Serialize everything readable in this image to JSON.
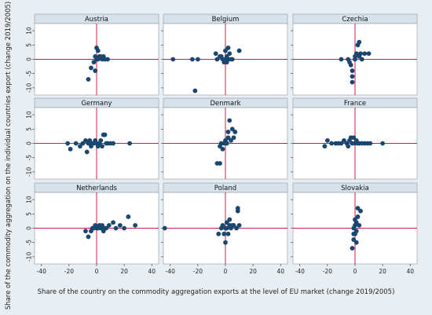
{
  "chart_data": {
    "type": "scatter",
    "xlabel": "Share of the country on the commodity aggregation exports at the level of EU market (change 2019/2005)",
    "ylabel": "Share of the commodity aggregation on the individual countries export (change 2019/2005)",
    "xlim": [
      -45,
      45
    ],
    "ylim": [
      -12.5,
      12.5
    ],
    "x_ticks": [
      -40,
      -20,
      0,
      20,
      40
    ],
    "y_ticks": [
      -10,
      -5,
      0,
      5,
      10
    ],
    "reference_lines": {
      "x": 0,
      "y": 0,
      "color": "#d6184a"
    },
    "point_color": "#1a476f",
    "panels": [
      {
        "title": "Austria",
        "points": [
          [
            0,
            4
          ],
          [
            1,
            3
          ],
          [
            -1,
            1
          ],
          [
            0,
            0
          ],
          [
            1,
            0
          ],
          [
            2,
            1
          ],
          [
            3,
            1
          ],
          [
            4,
            0
          ],
          [
            5,
            1
          ],
          [
            6,
            0
          ],
          [
            8,
            0
          ],
          [
            -2,
            -1
          ],
          [
            -4,
            -3
          ],
          [
            -1,
            -4
          ],
          [
            -6,
            -7
          ]
        ]
      },
      {
        "title": "Belgium",
        "points": [
          [
            -38,
            0
          ],
          [
            -24,
            0
          ],
          [
            -22,
            -11
          ],
          [
            -20,
            0
          ],
          [
            -6,
            0
          ],
          [
            -4,
            1
          ],
          [
            -3,
            1
          ],
          [
            -2,
            0
          ],
          [
            -1,
            -1
          ],
          [
            0,
            0
          ],
          [
            0,
            3
          ],
          [
            1,
            1
          ],
          [
            1,
            -1
          ],
          [
            2,
            0
          ],
          [
            2,
            4
          ],
          [
            3,
            2
          ],
          [
            4,
            0
          ],
          [
            5,
            0
          ],
          [
            10,
            3
          ],
          [
            -7,
            2
          ]
        ]
      },
      {
        "title": "Czechia",
        "points": [
          [
            -10,
            0
          ],
          [
            -5,
            0
          ],
          [
            -4,
            -1
          ],
          [
            -3,
            -2
          ],
          [
            -2,
            -4
          ],
          [
            -2,
            -6
          ],
          [
            -2,
            -8
          ],
          [
            0,
            0
          ],
          [
            0,
            1
          ],
          [
            1,
            2
          ],
          [
            2,
            5
          ],
          [
            3,
            6
          ],
          [
            3,
            1
          ],
          [
            4,
            2
          ],
          [
            5,
            0
          ],
          [
            7,
            2
          ],
          [
            10,
            2
          ]
        ]
      },
      {
        "title": "Germany",
        "points": [
          [
            -21,
            0
          ],
          [
            -19,
            -2
          ],
          [
            -15,
            0
          ],
          [
            -12,
            -1
          ],
          [
            -10,
            0
          ],
          [
            -8,
            1
          ],
          [
            -7,
            -3
          ],
          [
            -6,
            0
          ],
          [
            -5,
            1
          ],
          [
            -4,
            -1
          ],
          [
            -3,
            0
          ],
          [
            -2,
            0
          ],
          [
            -1,
            1
          ],
          [
            0,
            0
          ],
          [
            1,
            -1
          ],
          [
            2,
            0
          ],
          [
            3,
            1
          ],
          [
            4,
            -1
          ],
          [
            5,
            3
          ],
          [
            6,
            3
          ],
          [
            7,
            0
          ],
          [
            8,
            0
          ],
          [
            10,
            0
          ],
          [
            12,
            0
          ],
          [
            24,
            0
          ]
        ]
      },
      {
        "title": "Denmark",
        "points": [
          [
            -6,
            -7
          ],
          [
            -4,
            -7
          ],
          [
            -4,
            -1
          ],
          [
            -3,
            0
          ],
          [
            -2,
            -2
          ],
          [
            -1,
            0
          ],
          [
            0,
            1
          ],
          [
            1,
            0
          ],
          [
            2,
            2
          ],
          [
            2,
            4
          ],
          [
            3,
            8
          ],
          [
            4,
            1
          ],
          [
            5,
            5
          ],
          [
            6,
            2
          ],
          [
            7,
            4
          ]
        ]
      },
      {
        "title": "France",
        "points": [
          [
            -22,
            -1
          ],
          [
            -20,
            1
          ],
          [
            -17,
            0
          ],
          [
            -14,
            0
          ],
          [
            -12,
            0
          ],
          [
            -10,
            0
          ],
          [
            -8,
            1
          ],
          [
            -6,
            0
          ],
          [
            -5,
            -1
          ],
          [
            -4,
            1
          ],
          [
            -3,
            2
          ],
          [
            -2,
            0
          ],
          [
            -1,
            2
          ],
          [
            0,
            0
          ],
          [
            1,
            1
          ],
          [
            2,
            0
          ],
          [
            3,
            0
          ],
          [
            5,
            0
          ],
          [
            7,
            0
          ],
          [
            9,
            0
          ],
          [
            11,
            0
          ],
          [
            20,
            0
          ]
        ]
      },
      {
        "title": "Netherlands",
        "points": [
          [
            -8,
            -1
          ],
          [
            -6,
            -3
          ],
          [
            -4,
            -1
          ],
          [
            -3,
            0
          ],
          [
            -2,
            0
          ],
          [
            -1,
            1
          ],
          [
            0,
            0
          ],
          [
            1,
            0
          ],
          [
            2,
            1
          ],
          [
            3,
            0
          ],
          [
            4,
            1
          ],
          [
            5,
            -1
          ],
          [
            6,
            0
          ],
          [
            7,
            0
          ],
          [
            9,
            1
          ],
          [
            12,
            2
          ],
          [
            14,
            0
          ],
          [
            17,
            1
          ],
          [
            20,
            0
          ],
          [
            23,
            4
          ],
          [
            28,
            1
          ]
        ]
      },
      {
        "title": "Poland",
        "points": [
          [
            -44,
            0
          ],
          [
            -5,
            -2
          ],
          [
            -3,
            0
          ],
          [
            -2,
            1
          ],
          [
            -1,
            -2
          ],
          [
            0,
            0
          ],
          [
            0,
            -5
          ],
          [
            1,
            2
          ],
          [
            1,
            0
          ],
          [
            2,
            -2
          ],
          [
            3,
            1
          ],
          [
            3,
            3
          ],
          [
            4,
            0
          ],
          [
            5,
            1
          ],
          [
            6,
            1
          ],
          [
            8,
            0
          ],
          [
            9,
            6
          ],
          [
            9,
            7
          ],
          [
            10,
            1
          ]
        ]
      },
      {
        "title": "Slovakia",
        "points": [
          [
            -2,
            -7
          ],
          [
            -1,
            -4
          ],
          [
            -1,
            -2
          ],
          [
            -1,
            0
          ],
          [
            0,
            1
          ],
          [
            0,
            3
          ],
          [
            1,
            -5
          ],
          [
            1,
            2
          ],
          [
            1,
            -1
          ],
          [
            2,
            4
          ],
          [
            2,
            7
          ],
          [
            3,
            1
          ],
          [
            4,
            6
          ],
          [
            0,
            -2
          ]
        ]
      }
    ]
  }
}
